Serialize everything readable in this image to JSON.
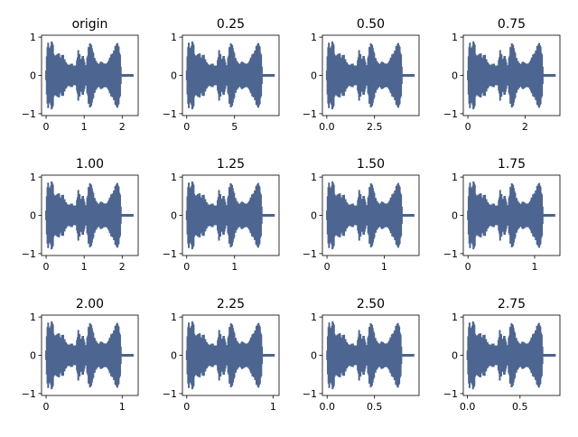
{
  "figure": {
    "wave_color": "#4c6591"
  },
  "chart_data": [
    {
      "type": "line",
      "title": "origin",
      "xlabel": "",
      "ylabel": "",
      "xlim": [
        -0.12,
        2.42
      ],
      "ylim": [
        -1.05,
        1.05
      ],
      "xticks": [
        0,
        1,
        2
      ],
      "xtick_labels": [
        "0",
        "1",
        "2"
      ],
      "yticks": [
        -1,
        0,
        1
      ],
      "ytick_labels": [
        "−1",
        "0",
        "1"
      ],
      "duration": 2.3,
      "signal_end": 1.98
    },
    {
      "type": "line",
      "title": "0.25",
      "xlabel": "",
      "ylabel": "",
      "xlim": [
        -0.45,
        9.65
      ],
      "ylim": [
        -1.05,
        1.05
      ],
      "xticks": [
        0,
        5
      ],
      "xtick_labels": [
        "0",
        "5"
      ],
      "yticks": [
        -1,
        0,
        1
      ],
      "ytick_labels": [
        "−1",
        "0",
        "1"
      ],
      "duration": 9.2,
      "signal_end": 7.92
    },
    {
      "type": "line",
      "title": "0.50",
      "xlabel": "",
      "ylabel": "",
      "xlim": [
        -0.23,
        4.83
      ],
      "ylim": [
        -1.05,
        1.05
      ],
      "xticks": [
        0,
        2.5
      ],
      "xtick_labels": [
        "0.0",
        "2.5"
      ],
      "yticks": [
        -1,
        0,
        1
      ],
      "ytick_labels": [
        "−1",
        "0",
        "1"
      ],
      "duration": 4.6,
      "signal_end": 3.96
    },
    {
      "type": "line",
      "title": "0.75",
      "xlabel": "",
      "ylabel": "",
      "xlim": [
        -0.16,
        3.22
      ],
      "ylim": [
        -1.05,
        1.05
      ],
      "xticks": [
        0,
        2
      ],
      "xtick_labels": [
        "0",
        "2"
      ],
      "yticks": [
        -1,
        0,
        1
      ],
      "ytick_labels": [
        "−1",
        "0",
        "1"
      ],
      "duration": 3.07,
      "signal_end": 2.64
    },
    {
      "type": "line",
      "title": "1.00",
      "xlabel": "",
      "ylabel": "",
      "xlim": [
        -0.12,
        2.42
      ],
      "ylim": [
        -1.05,
        1.05
      ],
      "xticks": [
        0,
        1,
        2
      ],
      "xtick_labels": [
        "0",
        "1",
        "2"
      ],
      "yticks": [
        -1,
        0,
        1
      ],
      "ytick_labels": [
        "−1",
        "0",
        "1"
      ],
      "duration": 2.3,
      "signal_end": 1.98
    },
    {
      "type": "line",
      "title": "1.25",
      "xlabel": "",
      "ylabel": "",
      "xlim": [
        -0.09,
        1.93
      ],
      "ylim": [
        -1.05,
        1.05
      ],
      "xticks": [
        0,
        1
      ],
      "xtick_labels": [
        "0",
        "1"
      ],
      "yticks": [
        -1,
        0,
        1
      ],
      "ytick_labels": [
        "−1",
        "0",
        "1"
      ],
      "duration": 1.84,
      "signal_end": 1.58
    },
    {
      "type": "line",
      "title": "1.50",
      "xlabel": "",
      "ylabel": "",
      "xlim": [
        -0.08,
        1.61
      ],
      "ylim": [
        -1.05,
        1.05
      ],
      "xticks": [
        0,
        1
      ],
      "xtick_labels": [
        "0",
        "1"
      ],
      "yticks": [
        -1,
        0,
        1
      ],
      "ytick_labels": [
        "−1",
        "0",
        "1"
      ],
      "duration": 1.53,
      "signal_end": 1.32
    },
    {
      "type": "line",
      "title": "1.75",
      "xlabel": "",
      "ylabel": "",
      "xlim": [
        -0.07,
        1.38
      ],
      "ylim": [
        -1.05,
        1.05
      ],
      "xticks": [
        0,
        1
      ],
      "xtick_labels": [
        "0",
        "1"
      ],
      "yticks": [
        -1,
        0,
        1
      ],
      "ytick_labels": [
        "−1",
        "0",
        "1"
      ],
      "duration": 1.31,
      "signal_end": 1.13
    },
    {
      "type": "line",
      "title": "2.00",
      "xlabel": "",
      "ylabel": "",
      "xlim": [
        -0.06,
        1.21
      ],
      "ylim": [
        -1.05,
        1.05
      ],
      "xticks": [
        0,
        1
      ],
      "xtick_labels": [
        "0",
        "1"
      ],
      "yticks": [
        -1,
        0,
        1
      ],
      "ytick_labels": [
        "−1",
        "0",
        "1"
      ],
      "duration": 1.15,
      "signal_end": 0.99
    },
    {
      "type": "line",
      "title": "2.25",
      "xlabel": "",
      "ylabel": "",
      "xlim": [
        -0.05,
        1.07
      ],
      "ylim": [
        -1.05,
        1.05
      ],
      "xticks": [
        0,
        1
      ],
      "xtick_labels": [
        "0",
        "1"
      ],
      "yticks": [
        -1,
        0,
        1
      ],
      "ytick_labels": [
        "−1",
        "0",
        "1"
      ],
      "duration": 1.02,
      "signal_end": 0.88
    },
    {
      "type": "line",
      "title": "2.50",
      "xlabel": "",
      "ylabel": "",
      "xlim": [
        -0.05,
        0.97
      ],
      "ylim": [
        -1.05,
        1.05
      ],
      "xticks": [
        0,
        0.5
      ],
      "xtick_labels": [
        "0.0",
        "0.5"
      ],
      "yticks": [
        -1,
        0,
        1
      ],
      "ytick_labels": [
        "−1",
        "0",
        "1"
      ],
      "duration": 0.92,
      "signal_end": 0.79
    },
    {
      "type": "line",
      "title": "2.75",
      "xlabel": "",
      "ylabel": "",
      "xlim": [
        -0.04,
        0.88
      ],
      "ylim": [
        -1.05,
        1.05
      ],
      "xticks": [
        0,
        0.5
      ],
      "xtick_labels": [
        "0.0",
        "0.5"
      ],
      "yticks": [
        -1,
        0,
        1
      ],
      "ytick_labels": [
        "−1",
        "0",
        "1"
      ],
      "duration": 0.84,
      "signal_end": 0.72
    }
  ]
}
